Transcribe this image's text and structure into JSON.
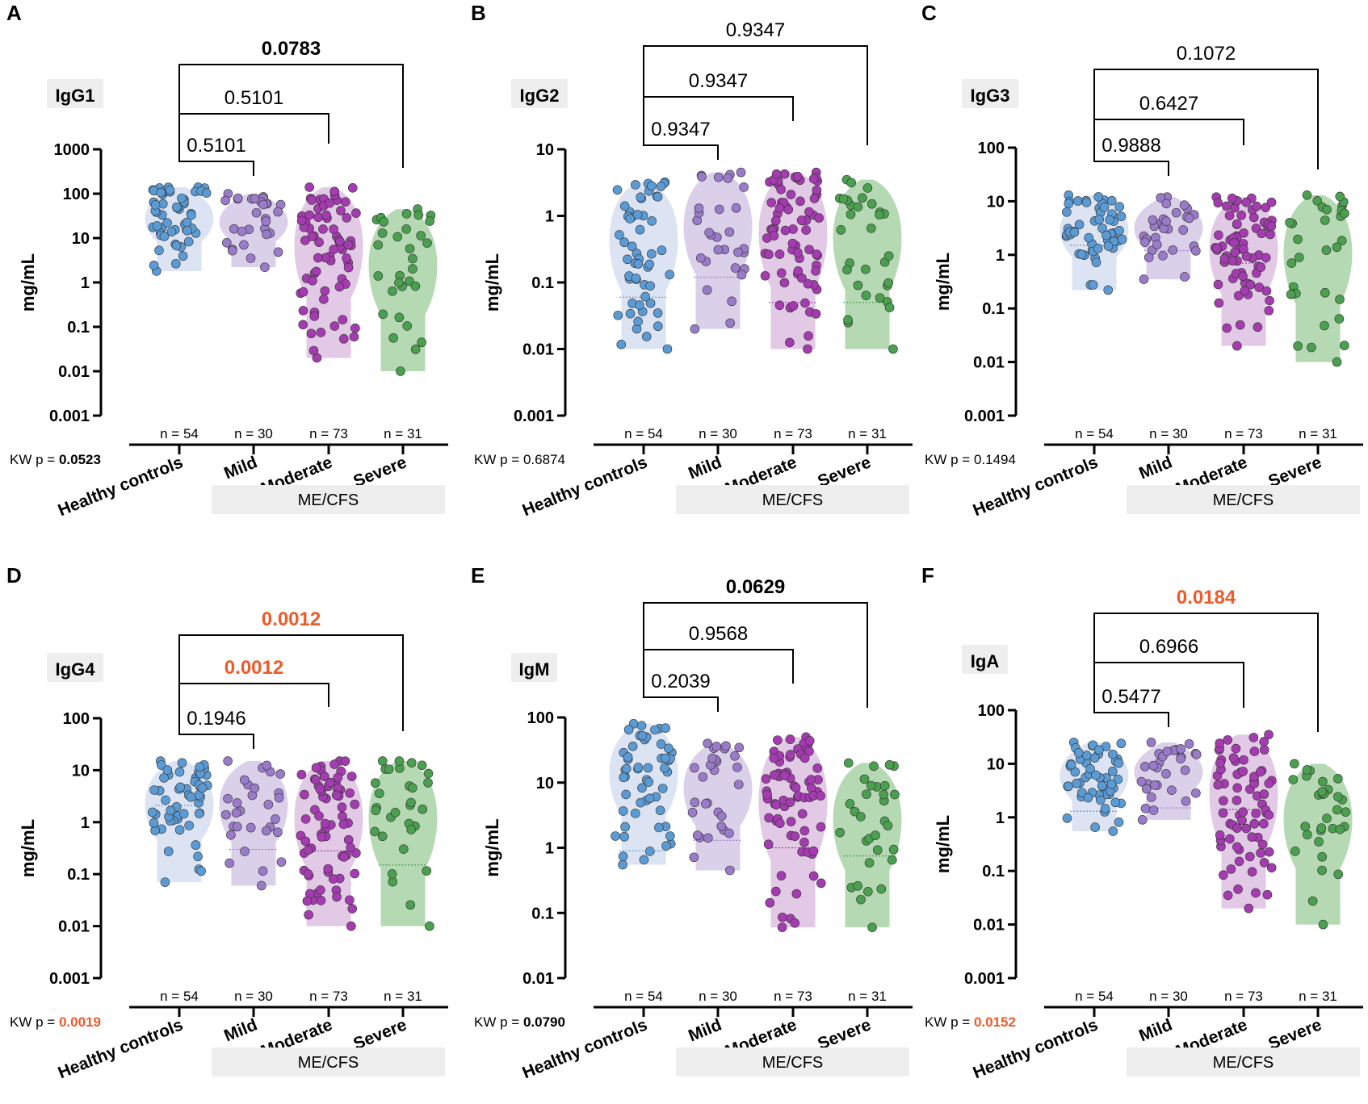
{
  "groups": [
    "Healthy controls",
    "Mild",
    "Moderate",
    "Severe"
  ],
  "group_block_label": "ME/CFS",
  "colors": {
    "groups": [
      "#5b9bd5",
      "#9a7bc9",
      "#a53bb0",
      "#4aa04f"
    ],
    "violins": [
      "#d6def0",
      "#d5c8e6",
      "#ddbfe0",
      "#a8d2a5"
    ],
    "significant": "#f05a28",
    "bar": "#000000",
    "band": "#eeeeee",
    "text": "#000000"
  },
  "chart_data": [
    {
      "panel": "A",
      "type": "scatter",
      "title": "IgG1",
      "ylabel": "mg/mL",
      "yscale": "log",
      "ylim": [
        0.001,
        1000
      ],
      "ticks": [
        "0.001",
        "0.01",
        "0.1",
        "1",
        "10",
        "100",
        "1000"
      ],
      "categories": [
        "Healthy controls",
        "Mild",
        "Moderate",
        "Severe"
      ],
      "n_labels": [
        "n = 54",
        "n = 30",
        "n = 73",
        "n = 31"
      ],
      "ranges": [
        [
          1.8,
          140
        ],
        [
          2.2,
          100
        ],
        [
          0.02,
          140
        ],
        [
          0.01,
          45
        ]
      ],
      "medians": [
        null,
        null,
        null,
        null
      ],
      "kw_prefix": "KW p = ",
      "kw_value": "0.0523",
      "kw_style": "bold",
      "comparisons": [
        {
          "to": 1,
          "label": "0.5101",
          "style": "normal"
        },
        {
          "to": 2,
          "label": "0.5101",
          "style": "normal"
        },
        {
          "to": 3,
          "label": "0.0783",
          "style": "bold"
        }
      ]
    },
    {
      "panel": "B",
      "type": "scatter",
      "title": "IgG2",
      "ylabel": "mg/mL",
      "yscale": "log",
      "ylim": [
        0.001,
        10
      ],
      "ticks": [
        "0.001",
        "0.01",
        "0.1",
        "1",
        "10"
      ],
      "categories": [
        "Healthy controls",
        "Mild",
        "Moderate",
        "Severe"
      ],
      "n_labels": [
        "n = 54",
        "n = 30",
        "n = 73",
        "n = 31"
      ],
      "ranges": [
        [
          0.01,
          3.2
        ],
        [
          0.02,
          4.5
        ],
        [
          0.01,
          4.5
        ],
        [
          0.01,
          3.5
        ]
      ],
      "medians": [
        0.06,
        0.12,
        0.05,
        0.05
      ],
      "kw_prefix": "KW p = ",
      "kw_value": "0.6874",
      "kw_style": "normal",
      "comparisons": [
        {
          "to": 1,
          "label": "0.9347",
          "style": "normal"
        },
        {
          "to": 2,
          "label": "0.9347",
          "style": "normal"
        },
        {
          "to": 3,
          "label": "0.9347",
          "style": "normal"
        }
      ]
    },
    {
      "panel": "C",
      "type": "scatter",
      "title": "IgG3",
      "ylabel": "mg/mL",
      "yscale": "log",
      "ylim": [
        0.001,
        100
      ],
      "ticks": [
        "0.001",
        "0.01",
        "0.1",
        "1",
        "10",
        "100"
      ],
      "categories": [
        "Healthy controls",
        "Mild",
        "Moderate",
        "Severe"
      ],
      "n_labels": [
        "n = 54",
        "n = 30",
        "n = 73",
        "n = 31"
      ],
      "ranges": [
        [
          0.22,
          13
        ],
        [
          0.35,
          12
        ],
        [
          0.02,
          12
        ],
        [
          0.01,
          13
        ]
      ],
      "medians": [
        1.5,
        1.2,
        0.7,
        null
      ],
      "kw_prefix": "KW p = ",
      "kw_value": "0.1494",
      "kw_style": "normal",
      "comparisons": [
        {
          "to": 1,
          "label": "0.9888",
          "style": "normal"
        },
        {
          "to": 2,
          "label": "0.6427",
          "style": "normal"
        },
        {
          "to": 3,
          "label": "0.1072",
          "style": "normal"
        }
      ]
    },
    {
      "panel": "D",
      "type": "scatter",
      "title": "IgG4",
      "ylabel": "mg/mL",
      "yscale": "log",
      "ylim": [
        0.001,
        100
      ],
      "ticks": [
        "0.001",
        "0.01",
        "0.1",
        "1",
        "10",
        "100"
      ],
      "categories": [
        "Healthy controls",
        "Mild",
        "Moderate",
        "Severe"
      ],
      "n_labels": [
        "n = 54",
        "n = 30",
        "n = 73",
        "n = 31"
      ],
      "ranges": [
        [
          0.07,
          15
        ],
        [
          0.06,
          15
        ],
        [
          0.01,
          15
        ],
        [
          0.01,
          15
        ]
      ],
      "medians": [
        2.1,
        0.3,
        0.28,
        0.15
      ],
      "kw_prefix": "KW p = ",
      "kw_value": "0.0019",
      "kw_style": "sig",
      "comparisons": [
        {
          "to": 1,
          "label": "0.1946",
          "style": "normal"
        },
        {
          "to": 2,
          "label": "0.0012",
          "style": "sig"
        },
        {
          "to": 3,
          "label": "0.0012",
          "style": "sig"
        }
      ]
    },
    {
      "panel": "E",
      "type": "scatter",
      "title": "IgM",
      "ylabel": "mg/mL",
      "yscale": "log",
      "ylim": [
        0.01,
        100
      ],
      "ticks": [
        "0.01",
        "0.1",
        "1",
        "10",
        "100"
      ],
      "categories": [
        "Healthy controls",
        "Mild",
        "Moderate",
        "Severe"
      ],
      "n_labels": [
        "n = 54",
        "n = 30",
        "n = 73",
        "n = 31"
      ],
      "ranges": [
        [
          0.55,
          80
        ],
        [
          0.45,
          40
        ],
        [
          0.06,
          50
        ],
        [
          0.06,
          20
        ]
      ],
      "medians": [
        0.9,
        1.3,
        1.0,
        0.75
      ],
      "kw_prefix": "KW p = ",
      "kw_value": "0.0790",
      "kw_style": "bold",
      "comparisons": [
        {
          "to": 1,
          "label": "0.2039",
          "style": "normal"
        },
        {
          "to": 2,
          "label": "0.9568",
          "style": "normal"
        },
        {
          "to": 3,
          "label": "0.0629",
          "style": "bold"
        }
      ]
    },
    {
      "panel": "F",
      "type": "scatter",
      "title": "IgA",
      "ylabel": "mg/mL",
      "yscale": "log",
      "ylim": [
        0.001,
        100
      ],
      "ticks": [
        "0.001",
        "0.01",
        "0.1",
        "1",
        "10",
        "100"
      ],
      "categories": [
        "Healthy controls",
        "Mild",
        "Moderate",
        "Severe"
      ],
      "n_labels": [
        "n = 54",
        "n = 30",
        "n = 73",
        "n = 31"
      ],
      "ranges": [
        [
          0.55,
          25
        ],
        [
          0.9,
          25
        ],
        [
          0.02,
          35
        ],
        [
          0.01,
          10
        ]
      ],
      "medians": [
        1.3,
        1.5,
        1.4,
        null
      ],
      "kw_prefix": "KW p = ",
      "kw_value": "0.0152",
      "kw_style": "sig",
      "comparisons": [
        {
          "to": 1,
          "label": "0.5477",
          "style": "normal"
        },
        {
          "to": 2,
          "label": "0.6966",
          "style": "normal"
        },
        {
          "to": 3,
          "label": "0.0184",
          "style": "sig"
        }
      ]
    }
  ]
}
